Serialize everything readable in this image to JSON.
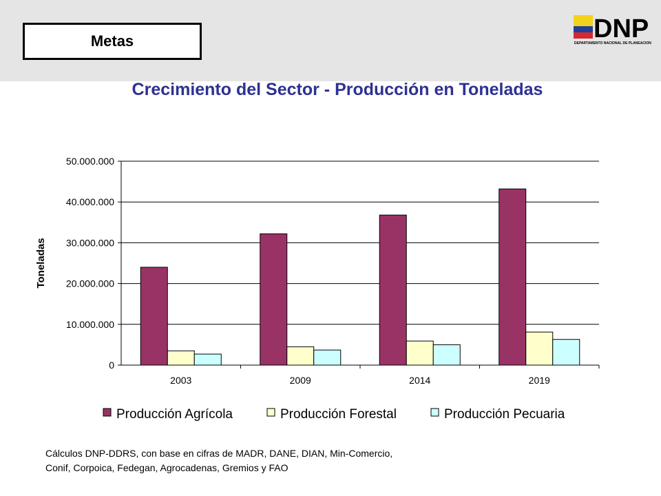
{
  "header": {
    "section_label": "Metas",
    "logo": {
      "text": "DNP",
      "subtitle": "DEPARTAMENTO NACIONAL DE PLANEACION",
      "flag_colors": [
        "#f4d11b",
        "#1f3f99",
        "#d7282f"
      ]
    }
  },
  "page_title": "Crecimiento del Sector - Producción en Toneladas",
  "chart_data": {
    "type": "bar",
    "title": "",
    "xlabel": "",
    "ylabel": "Toneladas",
    "categories": [
      "2003",
      "2009",
      "2014",
      "2019"
    ],
    "ylim": [
      0,
      50000000
    ],
    "yticks": [
      0,
      10000000,
      20000000,
      30000000,
      40000000,
      50000000
    ],
    "ytick_labels": [
      "0",
      "10.000.000",
      "20.000.000",
      "30.000.000",
      "40.000.000",
      "50.000.000"
    ],
    "grid": true,
    "legend_position": "bottom",
    "series": [
      {
        "name": "Producción Agrícola",
        "color": "#993366",
        "values": [
          24000000,
          32200000,
          36800000,
          43200000
        ]
      },
      {
        "name": "Producción Forestal",
        "color": "#ffffcc",
        "values": [
          3500000,
          4500000,
          5900000,
          8100000
        ]
      },
      {
        "name": "Producción Pecuaria",
        "color": "#ccffff",
        "values": [
          2700000,
          3700000,
          5000000,
          6300000
        ]
      }
    ]
  },
  "source_note": {
    "line1": "Cálculos DNP-DDRS, con base en cifras de MADR, DANE, DIAN, Min-Comercio,",
    "line2": "Conif, Corpoica, Fedegan, Agrocadenas, Gremios y FAO"
  }
}
